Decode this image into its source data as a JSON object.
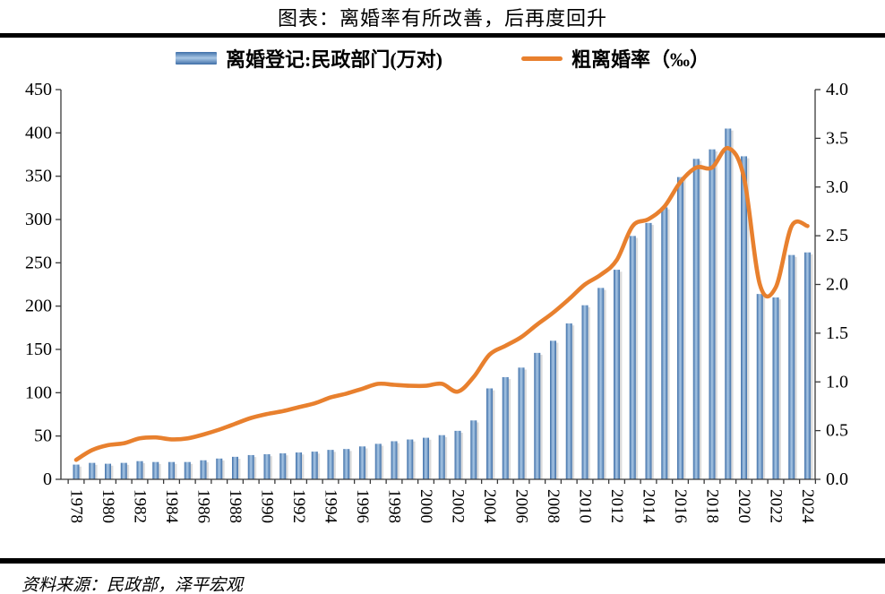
{
  "header": {
    "title": "图表：离婚率有所改善，后再度回升"
  },
  "legend": {
    "bar_label": "离婚登记:民政部门(万对)",
    "line_label": "粗离婚率（‰）"
  },
  "footer": {
    "source": "资料来源：民政部，泽平宏观"
  },
  "chart_data": {
    "type": "bar+line",
    "title": "图表：离婚率有所改善，后再度回升",
    "categories": [
      1978,
      1979,
      1980,
      1981,
      1982,
      1983,
      1984,
      1985,
      1986,
      1987,
      1988,
      1989,
      1990,
      1991,
      1992,
      1993,
      1994,
      1995,
      1996,
      1997,
      1998,
      1999,
      2000,
      2001,
      2002,
      2003,
      2004,
      2005,
      2006,
      2007,
      2008,
      2009,
      2010,
      2011,
      2012,
      2013,
      2014,
      2015,
      2016,
      2017,
      2018,
      2019,
      2020,
      2021,
      2022,
      2023,
      2024
    ],
    "x_label_interval": 2,
    "series": [
      {
        "name": "离婚登记:民政部门(万对)",
        "type": "bar",
        "axis": "left",
        "color_dark": "#3f6fa8",
        "color_light": "#a9c7e5",
        "values": [
          17,
          19,
          18,
          19,
          21,
          20,
          20,
          20,
          22,
          24,
          26,
          28,
          29,
          30,
          31,
          32,
          34,
          35,
          38,
          41,
          44,
          46,
          48,
          51,
          56,
          68,
          105,
          118,
          129,
          146,
          160,
          180,
          201,
          221,
          242,
          281,
          296,
          314,
          349,
          370,
          381,
          405,
          373,
          214,
          210,
          259,
          262
        ]
      },
      {
        "name": "粗离婚率（‰）",
        "type": "line",
        "axis": "right",
        "color": "#e8802e",
        "values": [
          0.2,
          0.3,
          0.35,
          0.37,
          0.42,
          0.43,
          0.41,
          0.42,
          0.46,
          0.51,
          0.57,
          0.63,
          0.67,
          0.7,
          0.74,
          0.78,
          0.84,
          0.88,
          0.93,
          0.98,
          0.97,
          0.96,
          0.96,
          0.98,
          0.9,
          1.05,
          1.28,
          1.37,
          1.46,
          1.59,
          1.71,
          1.85,
          2.0,
          2.1,
          2.25,
          2.6,
          2.67,
          2.8,
          3.05,
          3.2,
          3.2,
          3.4,
          3.1,
          2.0,
          1.97,
          2.6,
          2.6
        ]
      }
    ],
    "left_axis": {
      "min": 0,
      "max": 450,
      "step": 50,
      "ticks": [
        0,
        50,
        100,
        150,
        200,
        250,
        300,
        350,
        400,
        450
      ]
    },
    "right_axis": {
      "min": 0,
      "max": 4.0,
      "step": 0.5,
      "ticks": [
        0.0,
        0.5,
        1.0,
        1.5,
        2.0,
        2.5,
        3.0,
        3.5,
        4.0
      ]
    },
    "grid": false,
    "legend_position": "top"
  }
}
